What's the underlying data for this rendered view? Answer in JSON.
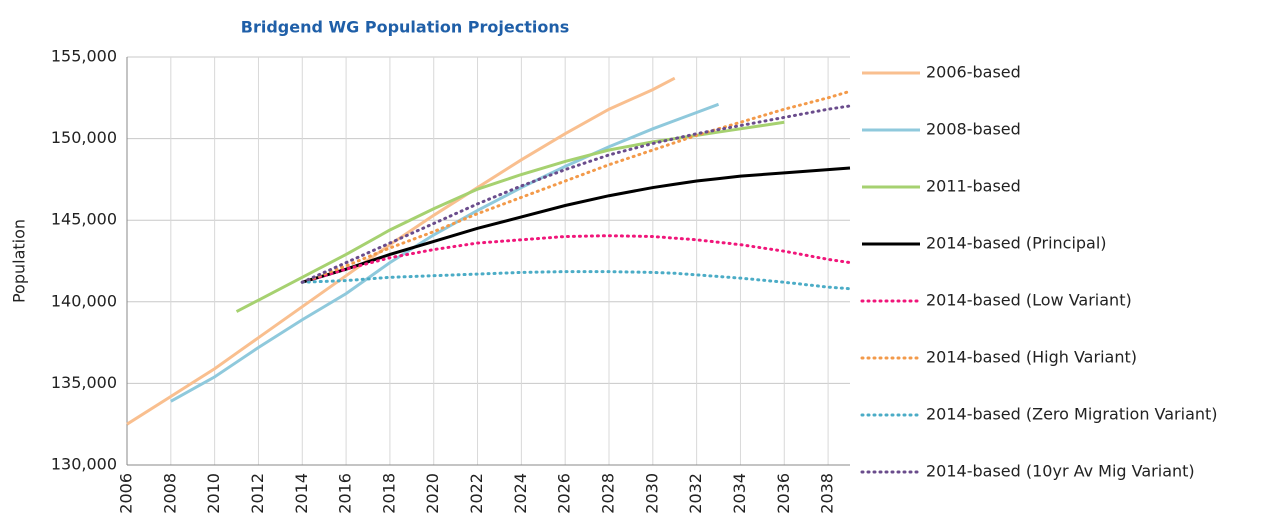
{
  "chart_data": {
    "type": "line",
    "title": "Bridgend WG Population Projections",
    "y_label": "Population",
    "x": [
      2006,
      2008,
      2010,
      2011,
      2012,
      2014,
      2016,
      2018,
      2020,
      2022,
      2024,
      2026,
      2028,
      2030,
      2031,
      2032,
      2033,
      2034,
      2036,
      2038,
      2039
    ],
    "series": [
      {
        "name": "2006-based",
        "color": "#f9bf8f",
        "style": "solid",
        "values": [
          132500,
          134200,
          135900,
          136850,
          137800,
          139700,
          141600,
          143500,
          145300,
          147000,
          148700,
          150300,
          151800,
          153000,
          153700,
          null,
          null,
          null,
          null,
          null,
          null
        ]
      },
      {
        "name": "2008-based",
        "color": "#8fc9dc",
        "style": "solid",
        "values": [
          null,
          133900,
          135400,
          136300,
          137200,
          138900,
          140500,
          142400,
          144100,
          145600,
          147000,
          148300,
          149500,
          150600,
          151100,
          151600,
          152100,
          null,
          null,
          null,
          null
        ]
      },
      {
        "name": "2011-based",
        "color": "#a6d170",
        "style": "solid",
        "values": [
          null,
          null,
          null,
          139400,
          140100,
          141500,
          142900,
          144400,
          145700,
          146900,
          147800,
          148600,
          149300,
          149800,
          150000,
          150200,
          150400,
          150600,
          151000,
          null,
          null
        ]
      },
      {
        "name": "2014-based (Principal)",
        "color": "#000000",
        "style": "solid",
        "values": [
          null,
          null,
          null,
          null,
          null,
          141200,
          142000,
          142900,
          143700,
          144500,
          145200,
          145900,
          146500,
          147000,
          147200,
          147400,
          147550,
          147700,
          147900,
          148100,
          148200
        ]
      },
      {
        "name": "2014-based (Low Variant)",
        "color": "#f0167a",
        "style": "dotted",
        "values": [
          null,
          null,
          null,
          null,
          null,
          141200,
          142000,
          142700,
          143200,
          143600,
          143800,
          144000,
          144050,
          144000,
          143900,
          143800,
          143650,
          143500,
          143100,
          142600,
          142400
        ]
      },
      {
        "name": "2014-based (High Variant)",
        "color": "#f39a4a",
        "style": "dotted",
        "values": [
          null,
          null,
          null,
          null,
          null,
          141200,
          142200,
          143300,
          144300,
          145400,
          146400,
          147400,
          148400,
          149300,
          149750,
          150200,
          150600,
          151000,
          151800,
          152500,
          152900
        ]
      },
      {
        "name": "2014-based (Zero Migration Variant)",
        "color": "#4bacc6",
        "style": "dotted",
        "values": [
          null,
          null,
          null,
          null,
          null,
          141200,
          141300,
          141500,
          141600,
          141700,
          141800,
          141850,
          141850,
          141800,
          141750,
          141650,
          141550,
          141450,
          141200,
          140900,
          140800
        ]
      },
      {
        "name": "2014-based (10yr Av Mig Variant)",
        "color": "#6a4c8c",
        "style": "dotted",
        "values": [
          null,
          null,
          null,
          null,
          null,
          141200,
          142400,
          143600,
          144800,
          146000,
          147100,
          148100,
          149000,
          149700,
          150000,
          150300,
          150550,
          150800,
          151300,
          151800,
          152000
        ]
      }
    ],
    "xlim": [
      2006,
      2039
    ],
    "xticks": [
      2006,
      2008,
      2010,
      2012,
      2014,
      2016,
      2018,
      2020,
      2022,
      2024,
      2026,
      2028,
      2030,
      2032,
      2034,
      2036,
      2038
    ],
    "ylim": [
      130000,
      155000
    ],
    "yticks": [
      {
        "value": 130000,
        "label": "130,000"
      },
      {
        "value": 135000,
        "label": "135,000"
      },
      {
        "value": 140000,
        "label": "140,000"
      },
      {
        "value": 145000,
        "label": "145,000"
      },
      {
        "value": 150000,
        "label": "150,000"
      },
      {
        "value": 155000,
        "label": "155,000"
      }
    ],
    "grid": true,
    "legend": "right"
  }
}
